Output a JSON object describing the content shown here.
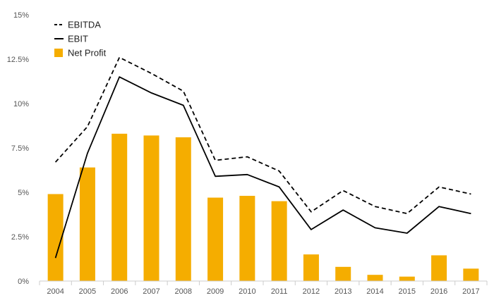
{
  "colors": {
    "bar": "#f5ad00",
    "line": "#000000",
    "axis": "#cccccc",
    "text": "#555555"
  },
  "chart_data": {
    "type": "bar",
    "categories": [
      "2004",
      "2005",
      "2006",
      "2007",
      "2008",
      "2009",
      "2010",
      "2011",
      "2012",
      "2013",
      "2014",
      "2015",
      "2016",
      "2017"
    ],
    "ylim": [
      0,
      15
    ],
    "y_ticks": [
      0,
      2.5,
      5,
      7.5,
      10,
      12.5,
      15
    ],
    "y_tick_labels": [
      "0%",
      "2.5%",
      "5%",
      "7.5%",
      "10%",
      "12.5%",
      "15%"
    ],
    "grid": false,
    "legend_position": "top-left",
    "series": [
      {
        "name": "EBITDA",
        "kind": "line",
        "style": "dashed",
        "values": [
          6.7,
          8.7,
          12.6,
          11.7,
          10.7,
          6.8,
          7.0,
          6.2,
          3.9,
          5.1,
          4.2,
          3.8,
          5.3,
          4.9
        ]
      },
      {
        "name": "EBIT",
        "kind": "line",
        "style": "solid",
        "values": [
          1.3,
          7.2,
          11.5,
          10.6,
          9.9,
          5.9,
          6.0,
          5.3,
          2.9,
          4.0,
          3.0,
          2.7,
          4.2,
          3.8
        ]
      },
      {
        "name": "Net Profit",
        "kind": "bar",
        "values": [
          4.9,
          6.4,
          8.3,
          8.2,
          8.1,
          4.7,
          4.8,
          4.5,
          1.5,
          0.8,
          0.35,
          0.25,
          1.45,
          0.7
        ]
      }
    ]
  }
}
